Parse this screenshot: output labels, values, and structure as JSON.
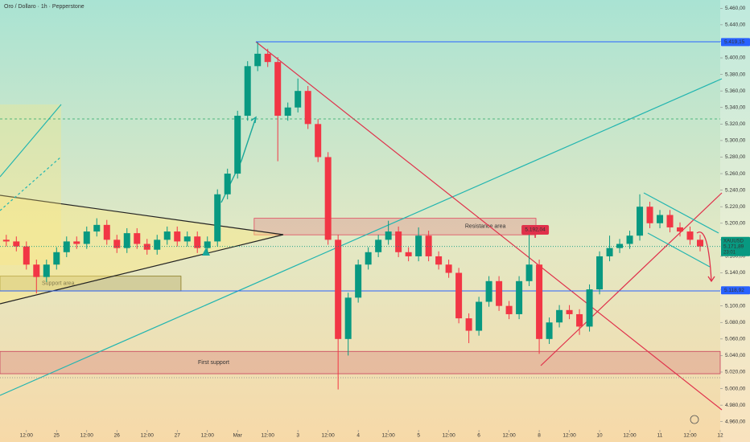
{
  "chart_data": {
    "type": "candlestick",
    "title": "Oro / Dollaro · 1h · Pepperstone",
    "up_color": "#089981",
    "down_color": "#f23645",
    "xlim": [
      1.5,
      288
    ],
    "xticks": [
      {
        "value": 12,
        "label": "12:00"
      },
      {
        "value": 24,
        "label": "25"
      },
      {
        "value": 36,
        "label": "12:00"
      },
      {
        "value": 48,
        "label": "26"
      },
      {
        "value": 60,
        "label": "12:00"
      },
      {
        "value": 72,
        "label": "27"
      },
      {
        "value": 84,
        "label": "12:00"
      },
      {
        "value": 96,
        "label": "Mar"
      },
      {
        "value": 108,
        "label": "12:00"
      },
      {
        "value": 120,
        "label": "3"
      },
      {
        "value": 132,
        "label": "12:00"
      },
      {
        "value": 144,
        "label": "4"
      },
      {
        "value": 156,
        "label": "12:00"
      },
      {
        "value": 168,
        "label": "5"
      },
      {
        "value": 180,
        "label": "12:00"
      },
      {
        "value": 192,
        "label": "6"
      },
      {
        "value": 204,
        "label": "12:00"
      },
      {
        "value": 216,
        "label": "8"
      },
      {
        "value": 228,
        "label": "12:00"
      },
      {
        "value": 240,
        "label": "10"
      },
      {
        "value": 252,
        "label": "12:00"
      },
      {
        "value": 264,
        "label": "11"
      },
      {
        "value": 276,
        "label": "12:00"
      },
      {
        "value": 288,
        "label": "12"
      }
    ],
    "ylim": [
      4950,
      5470
    ],
    "yticks": [
      {
        "value": 4960,
        "label": "4.960,00"
      },
      {
        "value": 4980,
        "label": "4.980,00"
      },
      {
        "value": 5000,
        "label": "5.000,00"
      },
      {
        "value": 5020,
        "label": "5.020,00"
      },
      {
        "value": 5040,
        "label": "5.040,00"
      },
      {
        "value": 5060,
        "label": "5.060,00"
      },
      {
        "value": 5080,
        "label": "5.080,00"
      },
      {
        "value": 5100,
        "label": "5.100,00"
      },
      {
        "value": 5120,
        "label": "5.120,00"
      },
      {
        "value": 5140,
        "label": "5.140,00"
      },
      {
        "value": 5160,
        "label": "5.160,00"
      },
      {
        "value": 5180,
        "label": "5.180,00"
      },
      {
        "value": 5200,
        "label": "5.200,00"
      },
      {
        "value": 5220,
        "label": "5.220,00"
      },
      {
        "value": 5240,
        "label": "5.240,00"
      },
      {
        "value": 5260,
        "label": "5.260,00"
      },
      {
        "value": 5280,
        "label": "5.280,00"
      },
      {
        "value": 5300,
        "label": "5.300,00"
      },
      {
        "value": 5320,
        "label": "5.320,00"
      },
      {
        "value": 5340,
        "label": "5.340,00"
      },
      {
        "value": 5360,
        "label": "5.360,00"
      },
      {
        "value": 5380,
        "label": "5.380,00"
      },
      {
        "value": 5400,
        "label": "5.400,00"
      },
      {
        "value": 5420,
        "label": "5.420,00"
      },
      {
        "value": 5440,
        "label": "5.440,00"
      },
      {
        "value": 5460,
        "label": "5.460,00"
      }
    ],
    "x": [
      4,
      8,
      12,
      16,
      20,
      24,
      28,
      32,
      36,
      40,
      44,
      48,
      52,
      56,
      60,
      64,
      68,
      72,
      76,
      80,
      84,
      88,
      92,
      96,
      100,
      104,
      108,
      112,
      116,
      120,
      124,
      128,
      132,
      136,
      140,
      144,
      148,
      152,
      156,
      160,
      164,
      168,
      172,
      176,
      180,
      184,
      188,
      192,
      196,
      200,
      204,
      208,
      212,
      216,
      220,
      224,
      228,
      232,
      236,
      240,
      244,
      248,
      252,
      256,
      260,
      264,
      268,
      272,
      276,
      280
    ],
    "open": [
      5180,
      5178,
      5172,
      5150,
      5135,
      5150,
      5165,
      5178,
      5175,
      5190,
      5198,
      5180,
      5170,
      5188,
      5175,
      5168,
      5180,
      5190,
      5178,
      5184,
      5170,
      5178,
      5235,
      5260,
      5330,
      5390,
      5405,
      5395,
      5330,
      5340,
      5360,
      5320,
      5280,
      5180,
      5060,
      5110,
      5150,
      5165,
      5180,
      5190,
      5165,
      5160,
      5185,
      5160,
      5150,
      5140,
      5085,
      5070,
      5105,
      5130,
      5100,
      5090,
      5130,
      5150,
      5060,
      5080,
      5095,
      5090,
      5075,
      5120,
      5160,
      5170,
      5175,
      5185,
      5220,
      5200,
      5210,
      5195,
      5190,
      5180
    ],
    "high": [
      5186,
      5184,
      5178,
      5156,
      5156,
      5171,
      5184,
      5184,
      5196,
      5206,
      5204,
      5186,
      5194,
      5194,
      5181,
      5186,
      5196,
      5196,
      5190,
      5190,
      5184,
      5241,
      5266,
      5336,
      5396,
      5419.15,
      5411,
      5401,
      5346,
      5375,
      5366,
      5326,
      5286,
      5186,
      5116,
      5156,
      5171,
      5186,
      5203,
      5196,
      5171,
      5195,
      5191,
      5166,
      5156,
      5146,
      5091,
      5111,
      5136,
      5136,
      5106,
      5136,
      5193,
      5156,
      5086,
      5101,
      5101,
      5096,
      5126,
      5166,
      5185,
      5181,
      5191,
      5235,
      5226,
      5216,
      5216,
      5201,
      5196,
      5186
    ],
    "low": [
      5172,
      5166,
      5144,
      5115,
      5129,
      5144,
      5159,
      5169,
      5169,
      5184,
      5174,
      5164,
      5164,
      5169,
      5162,
      5162,
      5174,
      5172,
      5172,
      5164,
      5164,
      5172,
      5229,
      5254,
      5324,
      5384,
      5389,
      5275,
      5324,
      5334,
      5314,
      5274,
      5174,
      4999,
      5040,
      5104,
      5144,
      5159,
      5174,
      5159,
      5154,
      5154,
      5154,
      5144,
      5134,
      5079,
      5055,
      5064,
      5099,
      5094,
      5084,
      5084,
      5124,
      5042,
      5054,
      5074,
      5084,
      5065,
      5069,
      5114,
      5154,
      5164,
      5169,
      5179,
      5194,
      5194,
      5189,
      5184,
      5174,
      5166
    ],
    "close": [
      5178,
      5172,
      5150,
      5135,
      5150,
      5165,
      5178,
      5175,
      5190,
      5198,
      5180,
      5170,
      5188,
      5175,
      5168,
      5180,
      5190,
      5178,
      5184,
      5170,
      5178,
      5235,
      5260,
      5330,
      5390,
      5405,
      5395,
      5330,
      5340,
      5360,
      5320,
      5280,
      5180,
      5060,
      5110,
      5150,
      5165,
      5180,
      5190,
      5165,
      5160,
      5185,
      5160,
      5150,
      5140,
      5085,
      5070,
      5105,
      5130,
      5100,
      5090,
      5130,
      5150,
      5060,
      5080,
      5095,
      5090,
      5075,
      5120,
      5160,
      5170,
      5175,
      5185,
      5220,
      5200,
      5210,
      5195,
      5190,
      5180,
      5171.89
    ],
    "zones": [
      {
        "label": "Resistance area",
        "low": 5186,
        "high": 5206,
        "x": [
          102.6,
          214.7
        ],
        "color": "#e04a5f"
      },
      {
        "label": "Support area",
        "low": 5118,
        "high": 5136,
        "x": [
          1.5,
          73.5
        ],
        "color": "#8a7a20"
      },
      {
        "label": "First support",
        "low": 5018,
        "high": 5045,
        "x": [
          1.5,
          288
        ],
        "color": "#c8405a"
      }
    ],
    "price_labels": [
      {
        "value": 5419.15,
        "label": "5.419,15",
        "color": "#2962ff"
      },
      {
        "value": 5171.89,
        "label": "5.171,89",
        "color": "#089981",
        "symbol": "XAUUSD",
        "countdown": "23:01"
      },
      {
        "value": 5118.92,
        "label": "5.118,92",
        "color": "#2962ff"
      }
    ],
    "price_marker": {
      "value": 5192.04,
      "label": "5.192,04",
      "x": 214.4,
      "color": "#e0314b"
    }
  }
}
